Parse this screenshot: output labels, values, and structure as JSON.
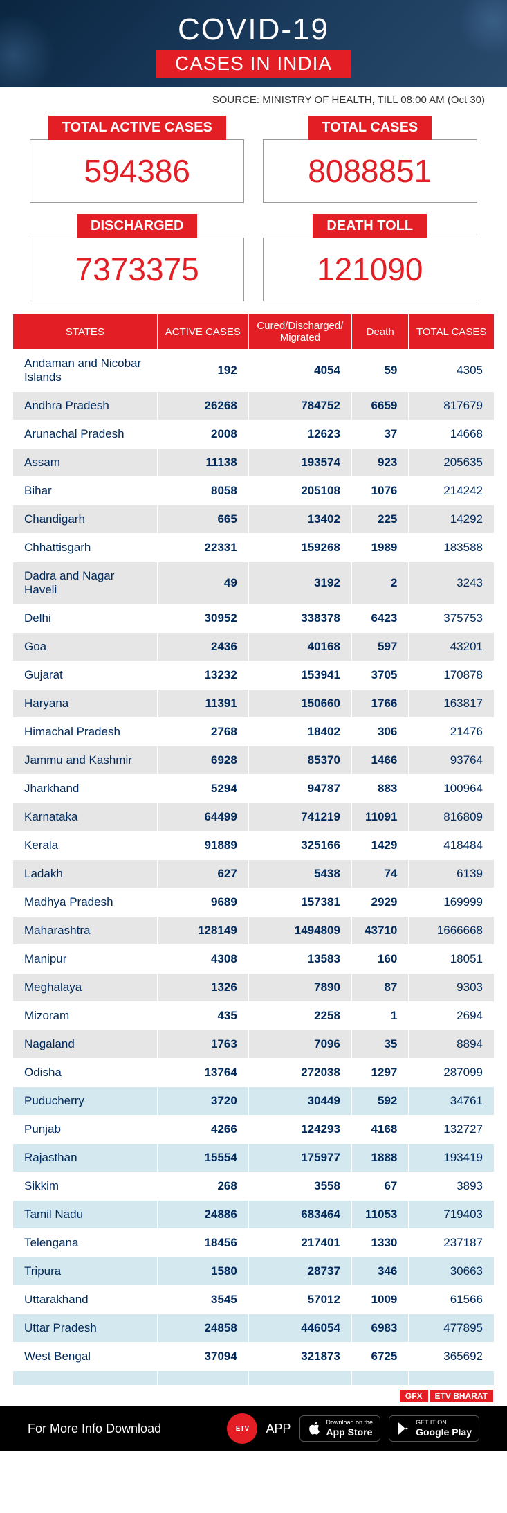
{
  "header": {
    "title_main": "COVID-19",
    "title_sub": "CASES IN INDIA",
    "source": "SOURCE: MINISTRY OF HEALTH, TILL 08:00 AM (Oct 30)"
  },
  "stats": [
    {
      "label": "TOTAL ACTIVE CASES",
      "value": "594386"
    },
    {
      "label": "TOTAL CASES",
      "value": "8088851"
    },
    {
      "label": "DISCHARGED",
      "value": "7373375"
    },
    {
      "label": "DEATH TOLL",
      "value": "121090"
    }
  ],
  "table": {
    "columns": [
      "STATES",
      "ACTIVE CASES",
      "Cured/Discharged/\nMigrated",
      "Death",
      "TOTAL CASES"
    ],
    "row_style_classes": [
      "r0",
      "r1",
      "r0",
      "r1",
      "r0",
      "r1",
      "r0",
      "r1",
      "r0",
      "r1",
      "r0",
      "r1",
      "r0",
      "r1",
      "r0",
      "r1",
      "r0",
      "r1",
      "r0",
      "r1",
      "r0",
      "r1",
      "r0",
      "r1",
      "r0",
      "r2",
      "r0",
      "r2",
      "r0",
      "r2",
      "r0",
      "r2",
      "r0",
      "r2",
      "r0",
      "r2"
    ],
    "rows": [
      [
        "Andaman and Nicobar Islands",
        "192",
        "4054",
        "59",
        "4305"
      ],
      [
        "Andhra Pradesh",
        "26268",
        "784752",
        "6659",
        "817679"
      ],
      [
        "Arunachal Pradesh",
        "2008",
        "12623",
        "37",
        "14668"
      ],
      [
        "Assam",
        "11138",
        "193574",
        "923",
        "205635"
      ],
      [
        "Bihar",
        "8058",
        "205108",
        "1076",
        "214242"
      ],
      [
        "Chandigarh",
        "665",
        "13402",
        "225",
        "14292"
      ],
      [
        "Chhattisgarh",
        "22331",
        "159268",
        "1989",
        "183588"
      ],
      [
        "Dadra and Nagar Haveli",
        "49",
        "3192",
        "2",
        "3243"
      ],
      [
        "Delhi",
        "30952",
        "338378",
        "6423",
        "375753"
      ],
      [
        "Goa",
        "2436",
        "40168",
        "597",
        "43201"
      ],
      [
        "Gujarat",
        "13232",
        "153941",
        "3705",
        "170878"
      ],
      [
        "Haryana",
        "11391",
        "150660",
        "1766",
        "163817"
      ],
      [
        "Himachal Pradesh",
        "2768",
        "18402",
        "306",
        "21476"
      ],
      [
        "Jammu and Kashmir",
        "6928",
        "85370",
        "1466",
        "93764"
      ],
      [
        "Jharkhand",
        "5294",
        "94787",
        "883",
        "100964"
      ],
      [
        "Karnataka",
        "64499",
        "741219",
        "11091",
        "816809"
      ],
      [
        "Kerala",
        "91889",
        "325166",
        "1429",
        "418484"
      ],
      [
        "Ladakh",
        "627",
        "5438",
        "74",
        "6139"
      ],
      [
        "Madhya Pradesh",
        "9689",
        "157381",
        "2929",
        "169999"
      ],
      [
        "Maharashtra",
        "128149",
        "1494809",
        "43710",
        "1666668"
      ],
      [
        "Manipur",
        "4308",
        "13583",
        "160",
        "18051"
      ],
      [
        "Meghalaya",
        "1326",
        "7890",
        "87",
        "9303"
      ],
      [
        "Mizoram",
        "435",
        "2258",
        "1",
        "2694"
      ],
      [
        "Nagaland",
        "1763",
        "7096",
        "35",
        "8894"
      ],
      [
        "Odisha",
        "13764",
        "272038",
        "1297",
        "287099"
      ],
      [
        "Puducherry",
        "3720",
        "30449",
        "592",
        "34761"
      ],
      [
        "Punjab",
        "4266",
        "124293",
        "4168",
        "132727"
      ],
      [
        "Rajasthan",
        "15554",
        "175977",
        "1888",
        "193419"
      ],
      [
        "Sikkim",
        "268",
        "3558",
        "67",
        "3893"
      ],
      [
        "Tamil Nadu",
        "24886",
        "683464",
        "11053",
        "719403"
      ],
      [
        "Telengana",
        "18456",
        "217401",
        "1330",
        "237187"
      ],
      [
        "Tripura",
        "1580",
        "28737",
        "346",
        "30663"
      ],
      [
        "Uttarakhand",
        "3545",
        "57012",
        "1009",
        "61566"
      ],
      [
        "Uttar Pradesh",
        "24858",
        "446054",
        "6983",
        "477895"
      ],
      [
        "West Bengal",
        "37094",
        "321873",
        "6725",
        "365692"
      ],
      [
        "",
        "",
        "",
        "",
        ""
      ]
    ]
  },
  "gfx": {
    "label1": "GFX",
    "label2": "ETV BHARAT"
  },
  "footer": {
    "text": "For More Info Download",
    "app_label": "APP",
    "logo_text": "ETV",
    "appstore_small": "Download on the",
    "appstore_big": "App Store",
    "gplay_small": "GET IT ON",
    "gplay_big": "Google Play"
  },
  "colors": {
    "red": "#e31e24",
    "navy": "#002a5c",
    "header_bg_start": "#0a2540",
    "header_bg_end": "#2a4a6c",
    "row_grey": "#e6e6e6",
    "row_blue": "#d4e8f0"
  }
}
